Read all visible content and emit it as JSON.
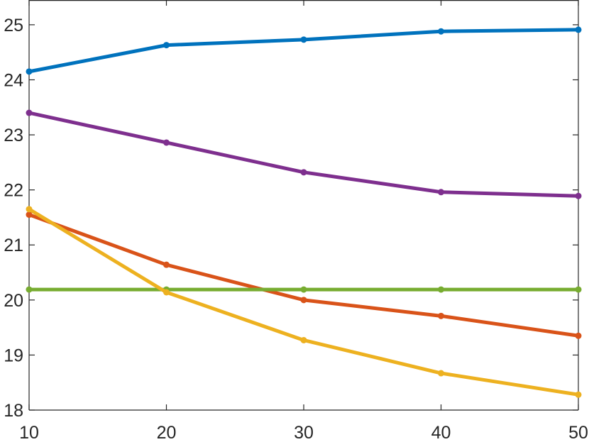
{
  "chart_data": {
    "type": "line",
    "title": "",
    "xlabel": "",
    "ylabel": "",
    "x": [
      10,
      20,
      30,
      40,
      50
    ],
    "xlim": [
      10,
      50
    ],
    "ylim": [
      18,
      25.45
    ],
    "x_ticks": [
      10,
      20,
      30,
      40,
      50
    ],
    "y_ticks": [
      18,
      19,
      20,
      21,
      22,
      23,
      24,
      25
    ],
    "grid": false,
    "legend": "none",
    "series": [
      {
        "color": "#0072BD",
        "values": [
          24.15,
          24.63,
          24.73,
          24.88,
          24.91
        ]
      },
      {
        "color": "#7E2F8E",
        "values": [
          23.4,
          22.86,
          22.32,
          21.96,
          21.89
        ]
      },
      {
        "color": "#D95319",
        "values": [
          21.55,
          20.64,
          20.0,
          19.71,
          19.35
        ]
      },
      {
        "color": "#77AC30",
        "values": [
          20.19,
          20.19,
          20.19,
          20.19,
          20.19
        ]
      },
      {
        "color": "#EDB120",
        "values": [
          21.65,
          20.14,
          19.27,
          18.67,
          18.28
        ]
      }
    ]
  }
}
